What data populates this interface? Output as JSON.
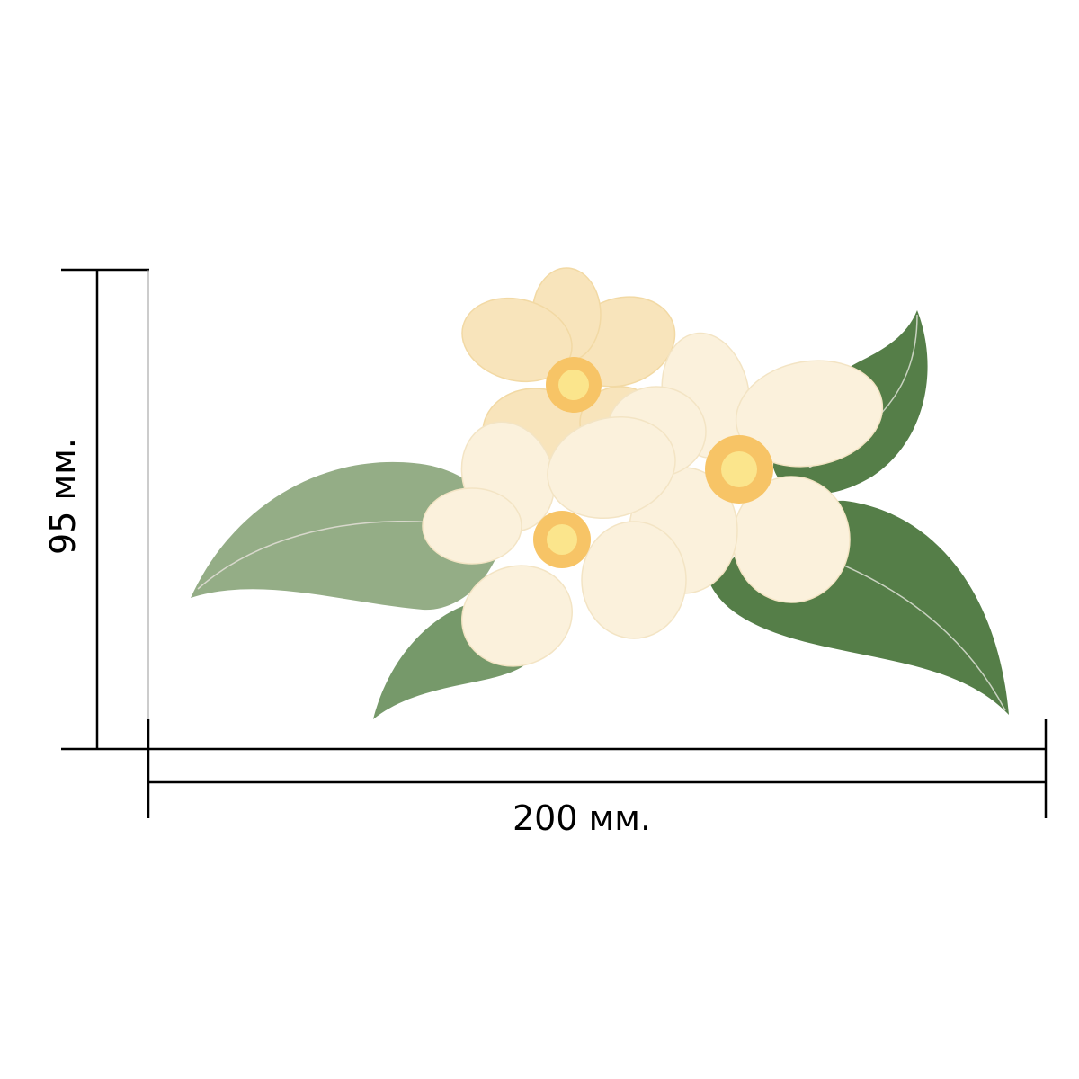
{
  "dimensions": {
    "width_label": "200 мм.",
    "height_label": "95 мм."
  },
  "illustration": {
    "subject": "flower-sticker",
    "colors": {
      "leaf_light": "#94ad86",
      "leaf_mid": "#76996a",
      "leaf_dark": "#557e48",
      "petal_back": "#f8e4bb",
      "petal_front": "#fbf1dc",
      "center_outer": "#f7c466",
      "center_inner": "#fbe58c",
      "dimension_line": "#000000"
    }
  }
}
